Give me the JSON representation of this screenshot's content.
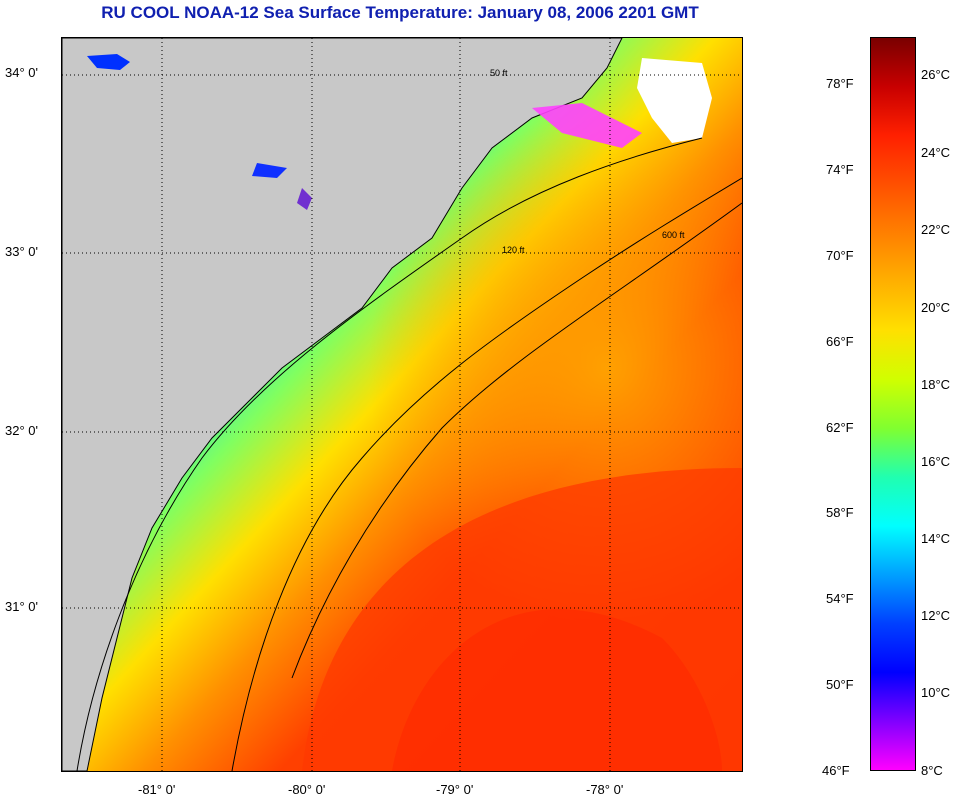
{
  "title": "RU COOL  NOAA-12  Sea Surface Temperature:  January 08, 2006 2201 GMT",
  "map": {
    "lat_labels": [
      "34° 0'",
      "33° 0'",
      "32° 0'",
      "31° 0'"
    ],
    "lon_labels": [
      "-81° 0'",
      "-80° 0'",
      "-79° 0'",
      "-78° 0'"
    ],
    "contour_labels": [
      "50 ft",
      "120 ft",
      "600 ft"
    ],
    "colors": {
      "land": "#c8c8c8",
      "cloud": "#ffffff",
      "coast": "#000000",
      "grid": "#000000"
    }
  },
  "colorbar": {
    "fahrenheit_labels": [
      "78°F",
      "74°F",
      "70°F",
      "66°F",
      "62°F",
      "58°F",
      "54°F",
      "50°F",
      "46°F"
    ],
    "celsius_labels": [
      "26°C",
      "24°C",
      "22°C",
      "20°C",
      "18°C",
      "16°C",
      "14°C",
      "12°C",
      "10°C",
      "8°C"
    ],
    "colors_top_to_bottom": [
      "#7a0000",
      "#c80000",
      "#ff2000",
      "#ff5000",
      "#ff8000",
      "#ffb000",
      "#ffe000",
      "#d0ff00",
      "#80ff30",
      "#20ffb0",
      "#00ffff",
      "#00a0ff",
      "#0040ff",
      "#0000ff",
      "#8000ff",
      "#ff00ff"
    ]
  }
}
